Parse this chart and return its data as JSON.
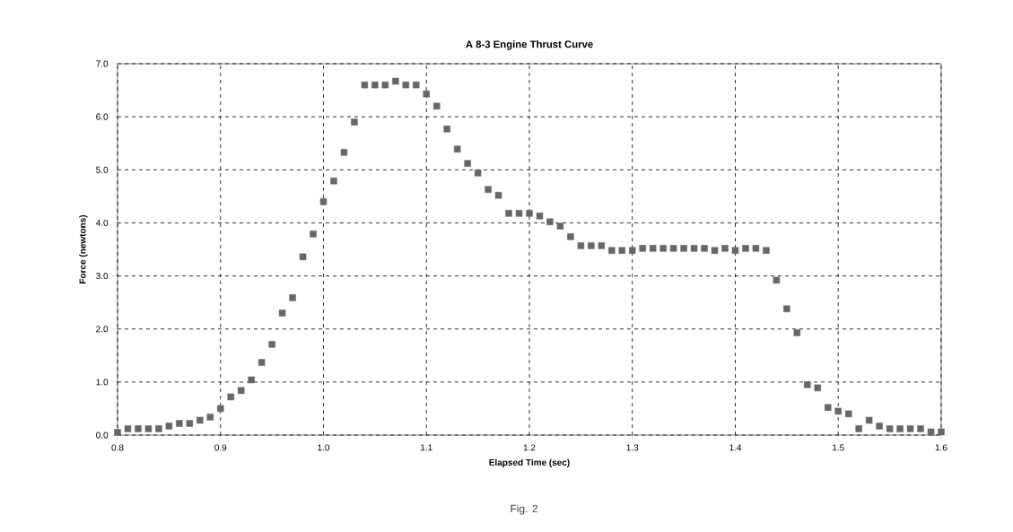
{
  "chart_data": {
    "type": "scatter",
    "title": "A 8-3 Engine Thrust Curve",
    "xlabel": "Elapsed Time (sec)",
    "ylabel": "Force (newtons)",
    "annotations": [
      "Fig. 2"
    ],
    "marker": "square",
    "grid": true,
    "xlim": [
      0.8,
      1.6
    ],
    "ylim": [
      0,
      7
    ],
    "xticks": [
      0.8,
      0.9,
      {
        "value": 1,
        "label": "1.0"
      },
      1.1,
      1.2,
      1.3,
      1.4,
      1.5,
      1.6
    ],
    "yticks": [
      {
        "value": 0,
        "label": "0.0"
      },
      {
        "value": 1,
        "label": "1.0"
      },
      {
        "value": 2,
        "label": "2.0"
      },
      {
        "value": 3,
        "label": "3.0"
      },
      {
        "value": 4,
        "label": "4.0"
      },
      {
        "value": 5,
        "label": "5.0"
      },
      {
        "value": 6,
        "label": "6.0"
      },
      {
        "value": 7,
        "label": "7.0"
      }
    ],
    "series": [
      {
        "color": "#666666",
        "x": [
          0.8,
          0.81,
          0.82,
          0.83,
          0.84,
          0.85,
          0.86,
          0.87,
          0.88,
          0.89,
          0.9,
          0.91,
          0.92,
          0.93,
          0.94,
          0.95,
          0.96,
          0.97,
          0.98,
          0.99,
          1.0,
          1.01,
          1.02,
          1.03,
          1.04,
          1.05,
          1.06,
          1.07,
          1.08,
          1.09,
          1.1,
          1.11,
          1.12,
          1.13,
          1.14,
          1.15,
          1.16,
          1.17,
          1.18,
          1.19,
          1.2,
          1.21,
          1.22,
          1.23,
          1.24,
          1.25,
          1.26,
          1.27,
          1.28,
          1.29,
          1.3,
          1.31,
          1.32,
          1.33,
          1.34,
          1.35,
          1.36,
          1.37,
          1.38,
          1.39,
          1.4,
          1.41,
          1.42,
          1.43,
          1.44,
          1.45,
          1.46,
          1.47,
          1.48,
          1.49,
          1.5,
          1.51,
          1.52,
          1.53,
          1.54,
          1.55,
          1.56,
          1.57,
          1.58,
          1.59,
          1.6
        ],
        "values": [
          0.05,
          0.12,
          0.12,
          0.12,
          0.12,
          0.17,
          0.22,
          0.22,
          0.28,
          0.34,
          0.5,
          0.72,
          0.84,
          1.04,
          1.37,
          1.71,
          2.3,
          2.59,
          3.36,
          3.79,
          4.4,
          4.79,
          5.33,
          5.9,
          6.6,
          6.6,
          6.6,
          6.67,
          6.6,
          6.6,
          6.43,
          6.2,
          5.77,
          5.39,
          5.12,
          4.94,
          4.63,
          4.52,
          4.18,
          4.18,
          4.18,
          4.13,
          4.02,
          3.94,
          3.74,
          3.57,
          3.57,
          3.57,
          3.48,
          3.48,
          3.48,
          3.52,
          3.52,
          3.52,
          3.52,
          3.52,
          3.52,
          3.52,
          3.48,
          3.52,
          3.48,
          3.52,
          3.52,
          3.48,
          2.92,
          2.38,
          1.93,
          0.95,
          0.89,
          0.52,
          0.45,
          0.4,
          0.12,
          0.28,
          0.17,
          0.12,
          0.12,
          0.12,
          0.12,
          0.06,
          0.06
        ]
      }
    ]
  }
}
